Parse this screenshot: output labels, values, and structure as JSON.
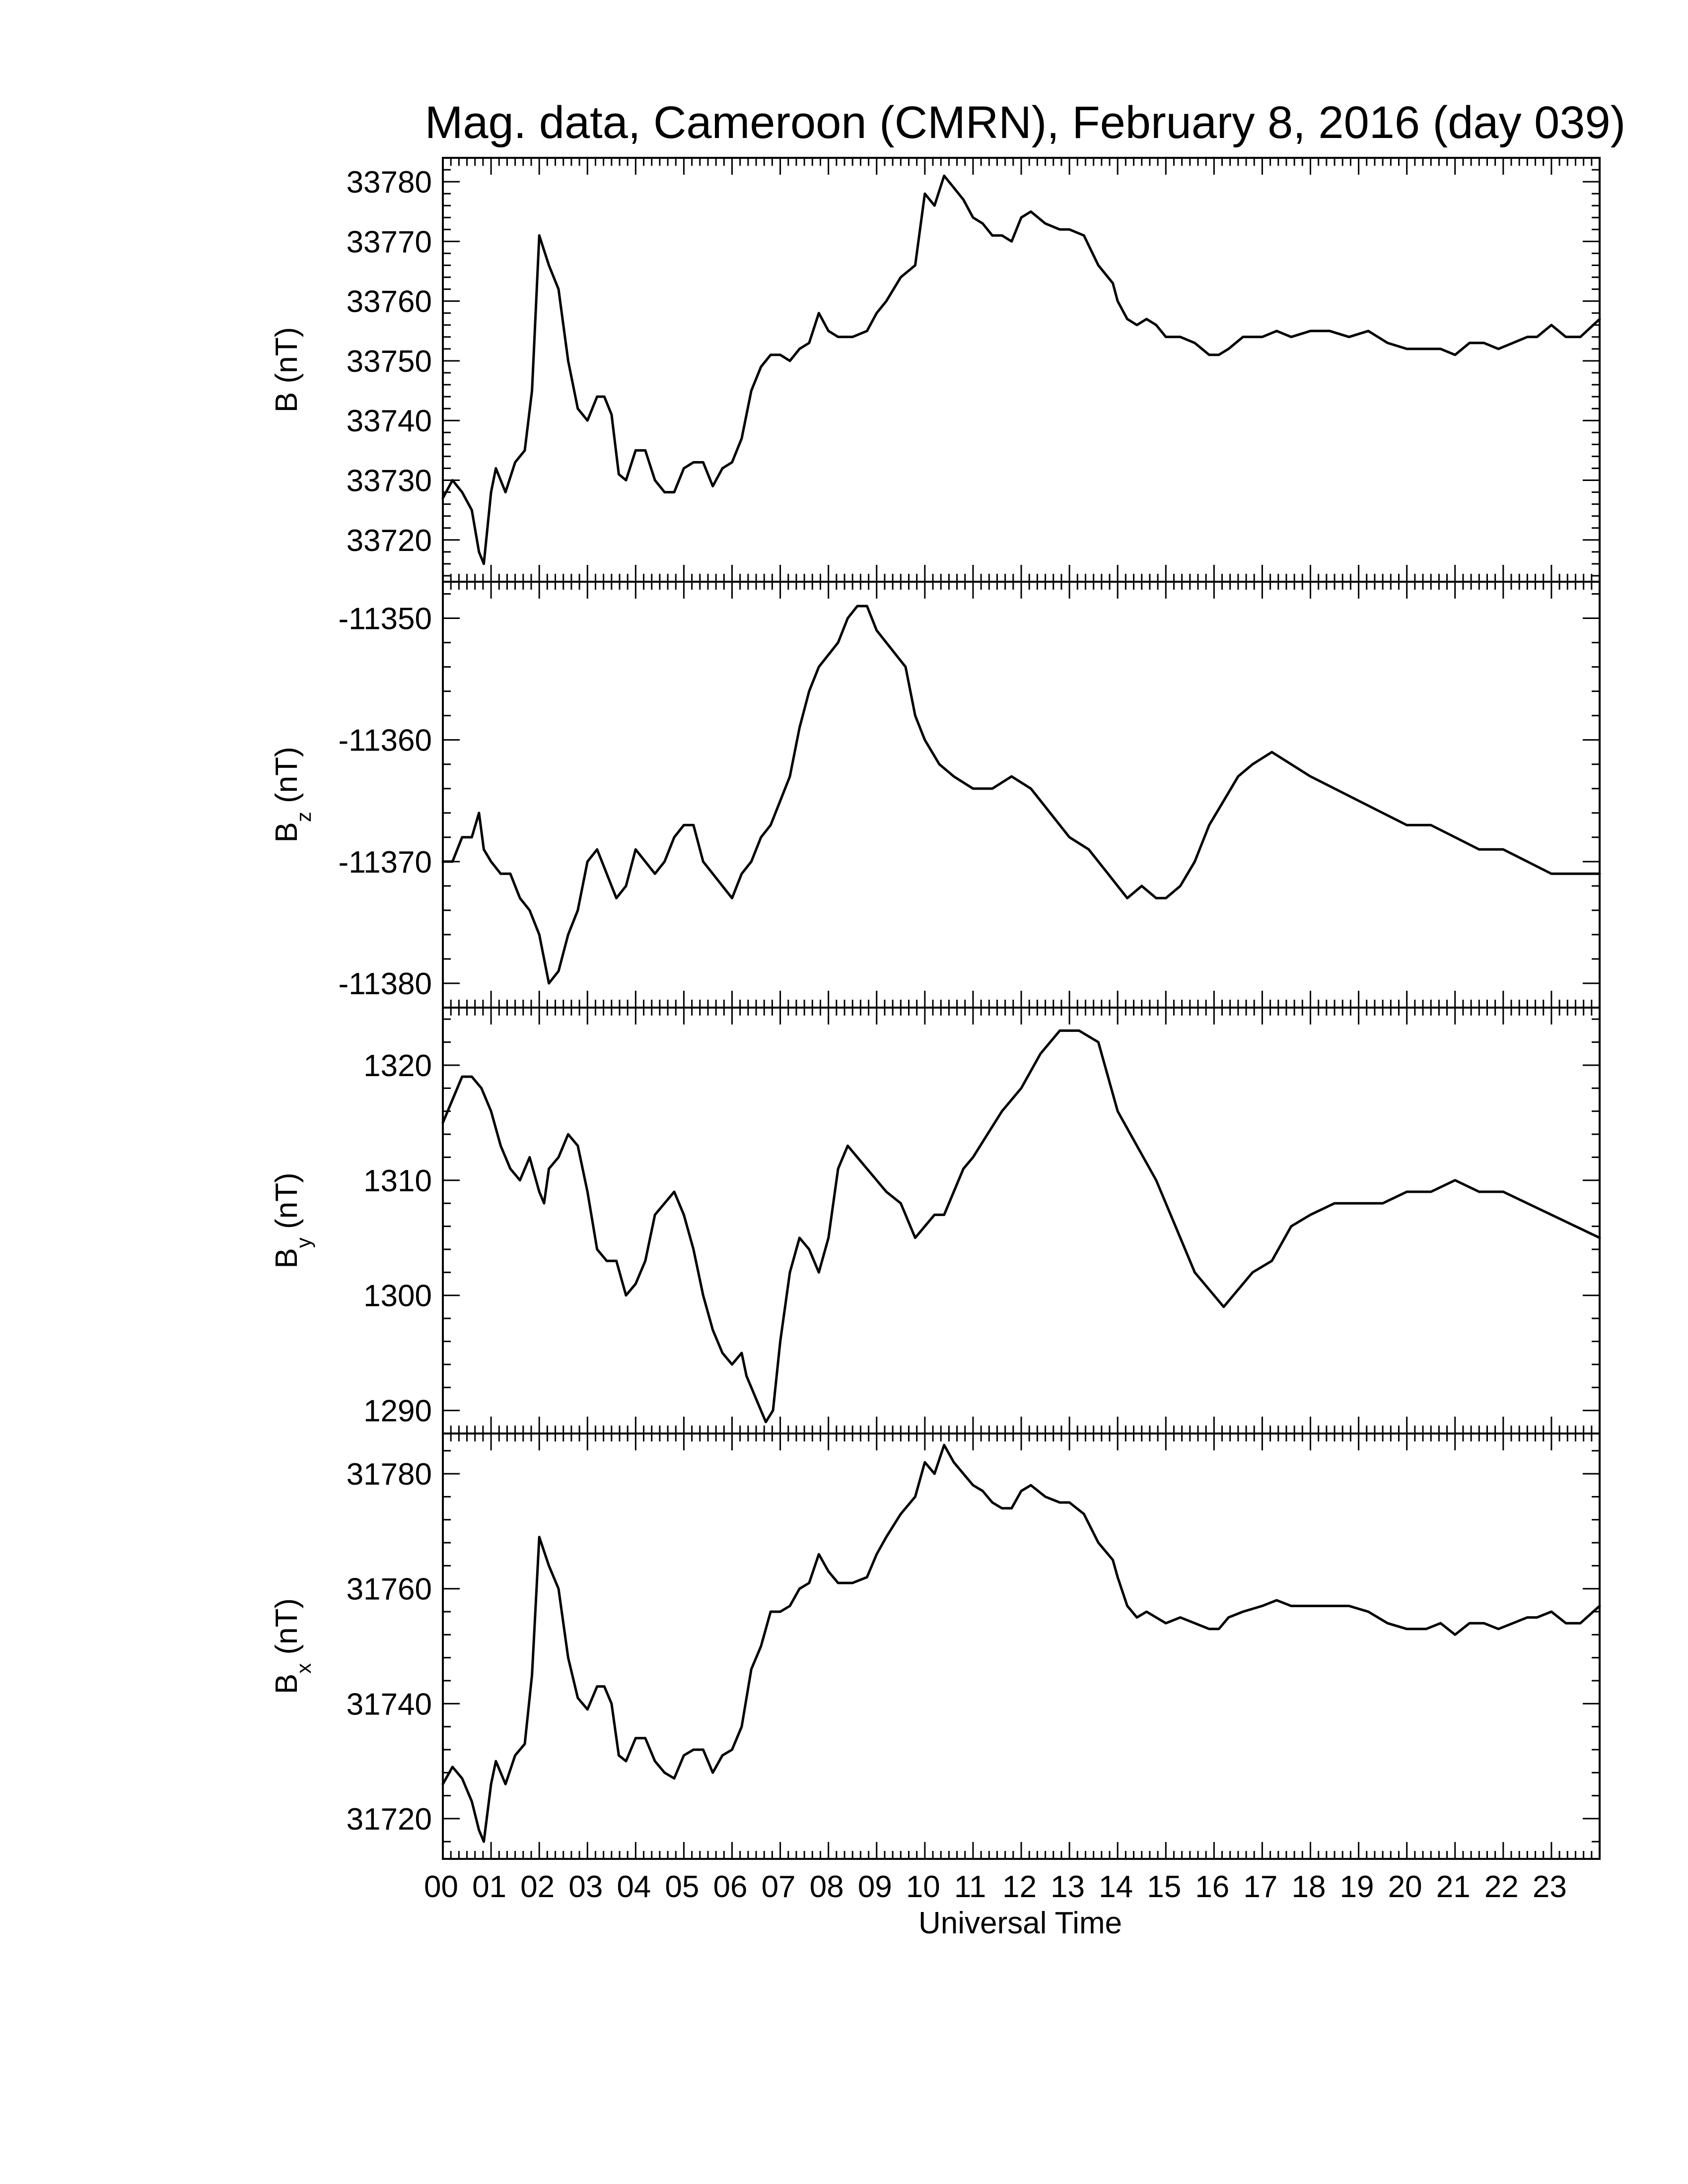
{
  "chart_data": {
    "type": "line",
    "title": "Mag. data, Cameroon (CMRN), February 8, 2016 (day 039)",
    "xlabel": "Universal Time",
    "x_tick_labels": [
      "00",
      "01",
      "02",
      "03",
      "04",
      "05",
      "06",
      "07",
      "08",
      "09",
      "10",
      "11",
      "12",
      "13",
      "14",
      "15",
      "16",
      "17",
      "18",
      "19",
      "20",
      "21",
      "22",
      "23"
    ],
    "xlim": [
      0,
      24
    ],
    "panels": [
      {
        "ylabel_main": "B",
        "ylabel_sub": "",
        "ylabel_unit": "(nT)",
        "ylim": [
          33713,
          33784
        ],
        "yticks": [
          33720,
          33730,
          33740,
          33750,
          33760,
          33770,
          33780
        ],
        "x": [
          0,
          0.2,
          0.4,
          0.6,
          0.75,
          0.85,
          1.0,
          1.1,
          1.3,
          1.5,
          1.7,
          1.85,
          2.0,
          2.2,
          2.4,
          2.6,
          2.8,
          3.0,
          3.2,
          3.35,
          3.5,
          3.65,
          3.8,
          4.0,
          4.2,
          4.4,
          4.6,
          4.8,
          5.0,
          5.2,
          5.4,
          5.6,
          5.8,
          6.0,
          6.2,
          6.4,
          6.6,
          6.8,
          7.0,
          7.2,
          7.4,
          7.6,
          7.8,
          8.0,
          8.2,
          8.5,
          8.8,
          9.0,
          9.2,
          9.5,
          9.8,
          10.0,
          10.2,
          10.4,
          10.6,
          10.8,
          11.0,
          11.2,
          11.4,
          11.6,
          11.8,
          12.0,
          12.2,
          12.5,
          12.8,
          13.0,
          13.3,
          13.6,
          13.9,
          14.0,
          14.2,
          14.4,
          14.6,
          14.8,
          15.0,
          15.3,
          15.6,
          15.9,
          16.1,
          16.3,
          16.6,
          17.0,
          17.3,
          17.6,
          18.0,
          18.4,
          18.8,
          19.2,
          19.6,
          20.0,
          20.4,
          20.7,
          21.0,
          21.3,
          21.6,
          21.9,
          22.2,
          22.5,
          22.7,
          23.0,
          23.3,
          23.6,
          24.0
        ],
        "y": [
          33727,
          33730,
          33728,
          33725,
          33718,
          33716,
          33728,
          33732,
          33728,
          33733,
          33735,
          33745,
          33771,
          33766,
          33762,
          33750,
          33742,
          33740,
          33744,
          33744,
          33741,
          33731,
          33730,
          33735,
          33735,
          33730,
          33728,
          33728,
          33732,
          33733,
          33733,
          33729,
          33732,
          33733,
          33737,
          33745,
          33749,
          33751,
          33751,
          33750,
          33752,
          33753,
          33758,
          33755,
          33754,
          33754,
          33755,
          33758,
          33760,
          33764,
          33766,
          33778,
          33776,
          33781,
          33779,
          33777,
          33774,
          33773,
          33771,
          33771,
          33770,
          33774,
          33775,
          33773,
          33772,
          33772,
          33771,
          33766,
          33763,
          33760,
          33757,
          33756,
          33757,
          33756,
          33754,
          33754,
          33753,
          33751,
          33751,
          33752,
          33754,
          33754,
          33755,
          33754,
          33755,
          33755,
          33754,
          33755,
          33753,
          33752,
          33752,
          33752,
          33751,
          33753,
          33753,
          33752,
          33753,
          33754,
          33754,
          33756,
          33754,
          33754,
          33757
        ]
      },
      {
        "ylabel_main": "B",
        "ylabel_sub": "z",
        "ylabel_unit": "(nT)",
        "ylim": [
          -11382,
          -11347
        ],
        "yticks": [
          -11380,
          -11370,
          -11360,
          -11350
        ],
        "x": [
          0,
          0.2,
          0.4,
          0.6,
          0.75,
          0.85,
          1.0,
          1.2,
          1.4,
          1.6,
          1.8,
          2.0,
          2.2,
          2.4,
          2.6,
          2.8,
          3.0,
          3.2,
          3.4,
          3.6,
          3.8,
          4.0,
          4.2,
          4.4,
          4.6,
          4.8,
          5.0,
          5.2,
          5.4,
          5.6,
          5.8,
          6.0,
          6.2,
          6.4,
          6.6,
          6.8,
          7.0,
          7.2,
          7.4,
          7.6,
          7.8,
          8.0,
          8.2,
          8.4,
          8.6,
          8.8,
          9.0,
          9.2,
          9.4,
          9.6,
          9.8,
          10.0,
          10.3,
          10.6,
          11.0,
          11.4,
          11.8,
          12.2,
          12.6,
          13.0,
          13.4,
          13.8,
          14.0,
          14.2,
          14.5,
          14.8,
          15.0,
          15.3,
          15.6,
          15.9,
          16.2,
          16.5,
          16.8,
          17.2,
          17.6,
          18.0,
          18.5,
          19.0,
          19.5,
          20.0,
          20.5,
          21.0,
          21.5,
          22.0,
          22.5,
          23.0,
          23.5,
          24.0
        ],
        "y": [
          -11370,
          -11370,
          -11368,
          -11368,
          -11366,
          -11369,
          -11370,
          -11371,
          -11371,
          -11373,
          -11374,
          -11376,
          -11380,
          -11379,
          -11376,
          -11374,
          -11370,
          -11369,
          -11371,
          -11373,
          -11372,
          -11369,
          -11370,
          -11371,
          -11370,
          -11368,
          -11367,
          -11367,
          -11370,
          -11371,
          -11372,
          -11373,
          -11371,
          -11370,
          -11368,
          -11367,
          -11365,
          -11363,
          -11359,
          -11356,
          -11354,
          -11353,
          -11352,
          -11350,
          -11349,
          -11349,
          -11351,
          -11352,
          -11353,
          -11354,
          -11358,
          -11360,
          -11362,
          -11363,
          -11364,
          -11364,
          -11363,
          -11364,
          -11366,
          -11368,
          -11369,
          -11371,
          -11372,
          -11373,
          -11372,
          -11373,
          -11373,
          -11372,
          -11370,
          -11367,
          -11365,
          -11363,
          -11362,
          -11361,
          -11362,
          -11363,
          -11364,
          -11365,
          -11366,
          -11367,
          -11367,
          -11368,
          -11369,
          -11369,
          -11370,
          -11371,
          -11371,
          -11371
        ]
      },
      {
        "ylabel_main": "B",
        "ylabel_sub": "y",
        "ylabel_unit": "(nT)",
        "ylim": [
          1288,
          1325
        ],
        "yticks": [
          1290,
          1300,
          1310,
          1320
        ],
        "x": [
          0,
          0.2,
          0.4,
          0.6,
          0.8,
          1.0,
          1.2,
          1.4,
          1.6,
          1.8,
          2.0,
          2.1,
          2.2,
          2.4,
          2.6,
          2.8,
          3.0,
          3.2,
          3.4,
          3.6,
          3.8,
          4.0,
          4.2,
          4.4,
          4.6,
          4.8,
          5.0,
          5.2,
          5.4,
          5.6,
          5.8,
          6.0,
          6.2,
          6.3,
          6.5,
          6.7,
          6.85,
          7.0,
          7.2,
          7.4,
          7.6,
          7.8,
          8.0,
          8.2,
          8.4,
          8.6,
          8.8,
          9.0,
          9.2,
          9.5,
          9.8,
          10.0,
          10.2,
          10.4,
          10.6,
          10.8,
          11.0,
          11.3,
          11.6,
          12.0,
          12.4,
          12.8,
          13.2,
          13.6,
          14.0,
          14.4,
          14.8,
          15.2,
          15.6,
          16.0,
          16.2,
          16.4,
          16.8,
          17.2,
          17.6,
          18.0,
          18.5,
          19.0,
          19.5,
          20.0,
          20.5,
          21.0,
          21.5,
          22.0,
          22.5,
          23.0,
          23.5,
          24.0
        ],
        "y": [
          1315,
          1317,
          1319,
          1319,
          1318,
          1316,
          1313,
          1311,
          1310,
          1312,
          1309,
          1308,
          1311,
          1312,
          1314,
          1313,
          1309,
          1304,
          1303,
          1303,
          1300,
          1301,
          1303,
          1307,
          1308,
          1309,
          1307,
          1304,
          1300,
          1297,
          1295,
          1294,
          1295,
          1293,
          1291,
          1289,
          1290,
          1296,
          1302,
          1305,
          1304,
          1302,
          1305,
          1311,
          1313,
          1312,
          1311,
          1310,
          1309,
          1308,
          1305,
          1306,
          1307,
          1307,
          1309,
          1311,
          1312,
          1314,
          1316,
          1318,
          1321,
          1323,
          1323,
          1322,
          1316,
          1313,
          1310,
          1306,
          1302,
          1300,
          1299,
          1300,
          1302,
          1303,
          1306,
          1307,
          1308,
          1308,
          1308,
          1309,
          1309,
          1310,
          1309,
          1309,
          1308,
          1307,
          1306,
          1305
        ]
      },
      {
        "ylabel_main": "B",
        "ylabel_sub": "x",
        "ylabel_unit": "(nT)",
        "ylim": [
          31713,
          31787
        ],
        "yticks": [
          31720,
          31740,
          31760,
          31780
        ],
        "x": [
          0,
          0.2,
          0.4,
          0.6,
          0.75,
          0.85,
          1.0,
          1.1,
          1.3,
          1.5,
          1.7,
          1.85,
          2.0,
          2.2,
          2.4,
          2.6,
          2.8,
          3.0,
          3.2,
          3.35,
          3.5,
          3.65,
          3.8,
          4.0,
          4.2,
          4.4,
          4.6,
          4.8,
          5.0,
          5.2,
          5.4,
          5.6,
          5.8,
          6.0,
          6.2,
          6.4,
          6.6,
          6.8,
          7.0,
          7.2,
          7.4,
          7.6,
          7.8,
          8.0,
          8.2,
          8.5,
          8.8,
          9.0,
          9.2,
          9.5,
          9.8,
          10.0,
          10.2,
          10.4,
          10.6,
          10.8,
          11.0,
          11.2,
          11.4,
          11.6,
          11.8,
          12.0,
          12.2,
          12.5,
          12.8,
          13.0,
          13.3,
          13.6,
          13.9,
          14.0,
          14.2,
          14.4,
          14.6,
          14.8,
          15.0,
          15.3,
          15.6,
          15.9,
          16.1,
          16.3,
          16.6,
          17.0,
          17.3,
          17.6,
          18.0,
          18.4,
          18.8,
          19.2,
          19.6,
          20.0,
          20.4,
          20.7,
          21.0,
          21.3,
          21.6,
          21.9,
          22.2,
          22.5,
          22.7,
          23.0,
          23.3,
          23.6,
          24.0
        ],
        "y": [
          31726,
          31729,
          31727,
          31723,
          31718,
          31716,
          31726,
          31730,
          31726,
          31731,
          31733,
          31745,
          31769,
          31764,
          31760,
          31748,
          31741,
          31739,
          31743,
          31743,
          31740,
          31731,
          31730,
          31734,
          31734,
          31730,
          31728,
          31727,
          31731,
          31732,
          31732,
          31728,
          31731,
          31732,
          31736,
          31746,
          31750,
          31756,
          31756,
          31757,
          31760,
          31761,
          31766,
          31763,
          31761,
          31761,
          31762,
          31766,
          31769,
          31773,
          31776,
          31782,
          31780,
          31785,
          31782,
          31780,
          31778,
          31777,
          31775,
          31774,
          31774,
          31777,
          31778,
          31776,
          31775,
          31775,
          31773,
          31768,
          31765,
          31762,
          31757,
          31755,
          31756,
          31755,
          31754,
          31755,
          31754,
          31753,
          31753,
          31755,
          31756,
          31757,
          31758,
          31757,
          31757,
          31757,
          31757,
          31756,
          31754,
          31753,
          31753,
          31754,
          31752,
          31754,
          31754,
          31753,
          31754,
          31755,
          31755,
          31756,
          31754,
          31754,
          31757
        ]
      }
    ]
  }
}
